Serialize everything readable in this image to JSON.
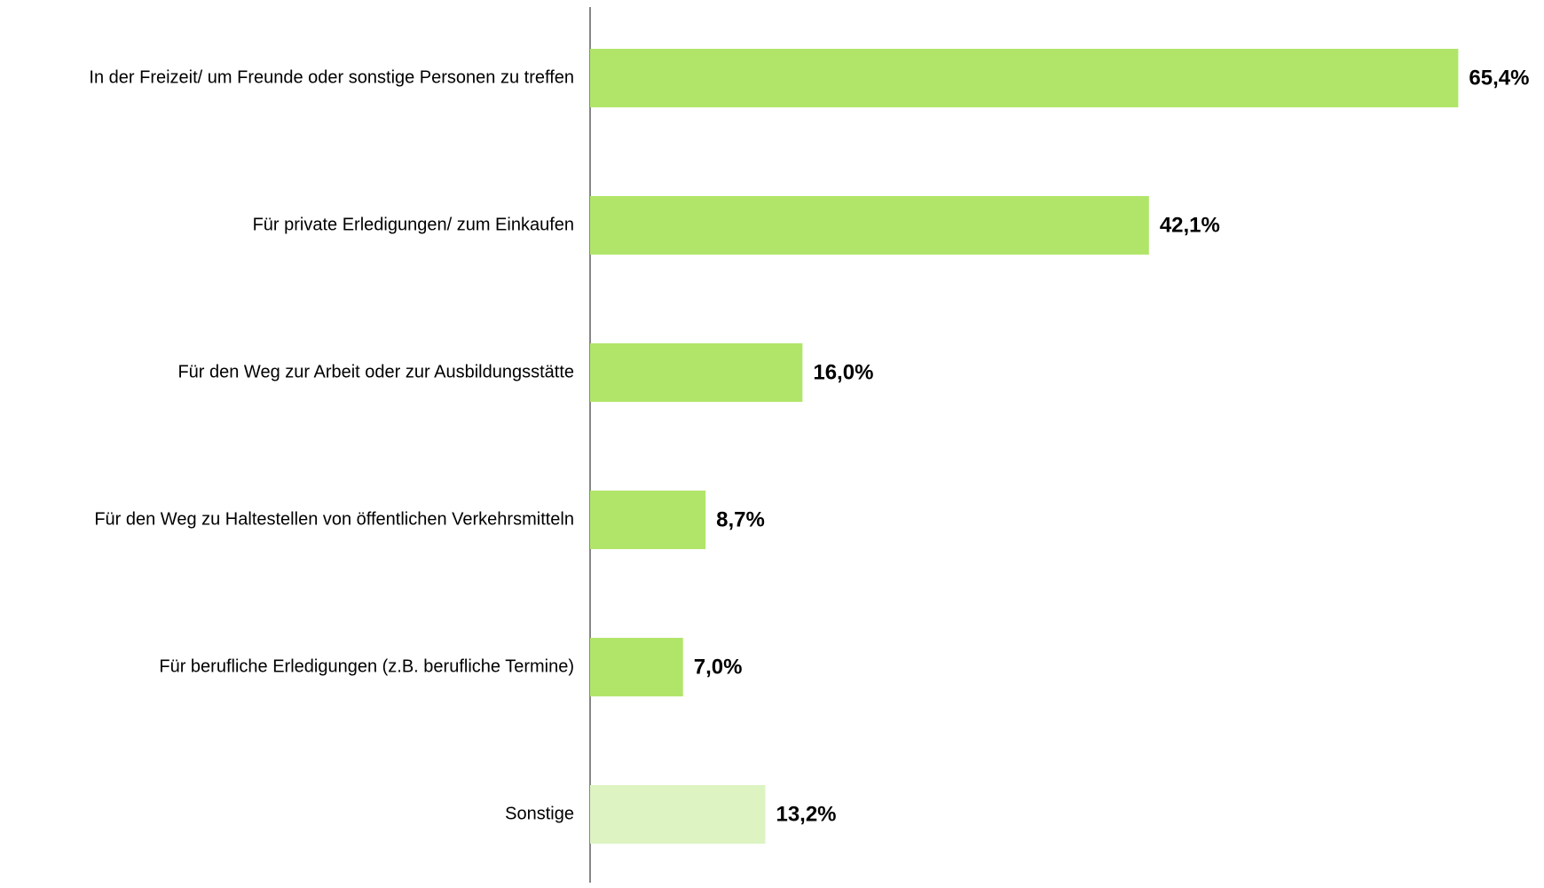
{
  "chart_data": {
    "type": "bar",
    "orientation": "horizontal",
    "categories": [
      "In der Freizeit/ um Freunde oder sonstige Personen zu treffen",
      "Für private Erledigungen/ zum Einkaufen",
      "Für den Weg zur Arbeit oder zur Ausbildungsstätte",
      "Für den Weg zu Haltestellen von öffentlichen Verkehrsmitteln",
      "Für berufliche Erledigungen (z.B. berufliche Termine)",
      "Sonstige"
    ],
    "values": [
      65.4,
      42.1,
      16.0,
      8.7,
      7.0,
      13.2
    ],
    "value_labels": [
      "65,4%",
      "42,1%",
      "16,0%",
      "8,7%",
      "7,0%",
      "13,2%"
    ],
    "colors": [
      "#b1e56a",
      "#b1e56a",
      "#b1e56a",
      "#b1e56a",
      "#b1e56a",
      "#ddf4c2"
    ]
  }
}
